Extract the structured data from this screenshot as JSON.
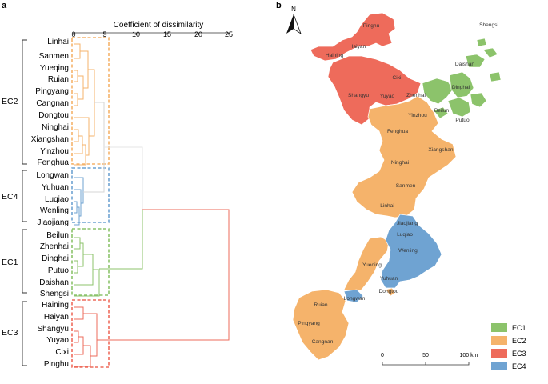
{
  "panel_a": {
    "label": "a",
    "axis_title": "Coefficient of dissimilarity",
    "ticks": [
      "0",
      "5",
      "10",
      "15",
      "20",
      "25"
    ],
    "groups": [
      {
        "name": "EC2",
        "color": "#f5b36b",
        "leaves": [
          "Linhai",
          "Sanmen",
          "Yueqing",
          "Ruian",
          "Pingyang",
          "Cangnan",
          "Dongtou",
          "Ninghai",
          "Xiangshan",
          "Yinzhou",
          "Fenghua"
        ]
      },
      {
        "name": "EC4",
        "color": "#6fa3d2",
        "leaves": [
          "Longwan",
          "Yuhuan",
          "Luqiao",
          "Wenling",
          "Jiaojiang"
        ]
      },
      {
        "name": "EC1",
        "color": "#8cc36b",
        "leaves": [
          "Beilun",
          "Zhenhai",
          "Dinghai",
          "Putuo",
          "Daishan",
          "Shengsi"
        ]
      },
      {
        "name": "EC3",
        "color": "#ee6b5b",
        "leaves": [
          "Haining",
          "Haiyan",
          "Shangyu",
          "Yuyao",
          "Cixi",
          "Pinghu"
        ]
      }
    ]
  },
  "panel_b": {
    "label": "b",
    "north": "N",
    "place_labels": {
      "pinghu": "Pinghu",
      "haiyan": "Haiyan",
      "haining": "Haining",
      "cixi": "Cixi",
      "shangyu": "Shangyu",
      "yuyao": "Yuyao",
      "zhenhai": "Zhenhai",
      "beilun": "Beilun",
      "yinzhou": "Yinzhou",
      "shengsi": "Shengsi",
      "daishan": "Daishan",
      "dinghai": "Dinghai",
      "putuo": "Putuo",
      "fenghua": "Fenghua",
      "xiangshan": "Xiangshan",
      "ninghai": "Ninghai",
      "sanmen": "Sanmen",
      "linhai": "Linhai",
      "jiaojiang": "Jiaojiang",
      "luqiao": "Luqiao",
      "wenling": "Wenling",
      "yueqing": "Yueqing",
      "yuhuan": "Yuhuan",
      "dongtou": "Dongtou",
      "longwan": "Longwan",
      "ruian": "Ruian",
      "pingyang": "Pingyang",
      "cangnan": "Cangnan"
    },
    "legend": [
      {
        "label": "EC1",
        "color": "#8cc36b"
      },
      {
        "label": "EC2",
        "color": "#f5b36b"
      },
      {
        "label": "EC3",
        "color": "#ee6b5b"
      },
      {
        "label": "EC4",
        "color": "#6fa3d2"
      }
    ],
    "scale_bar": {
      "ticks": [
        "0",
        "50",
        "100 km"
      ]
    }
  }
}
